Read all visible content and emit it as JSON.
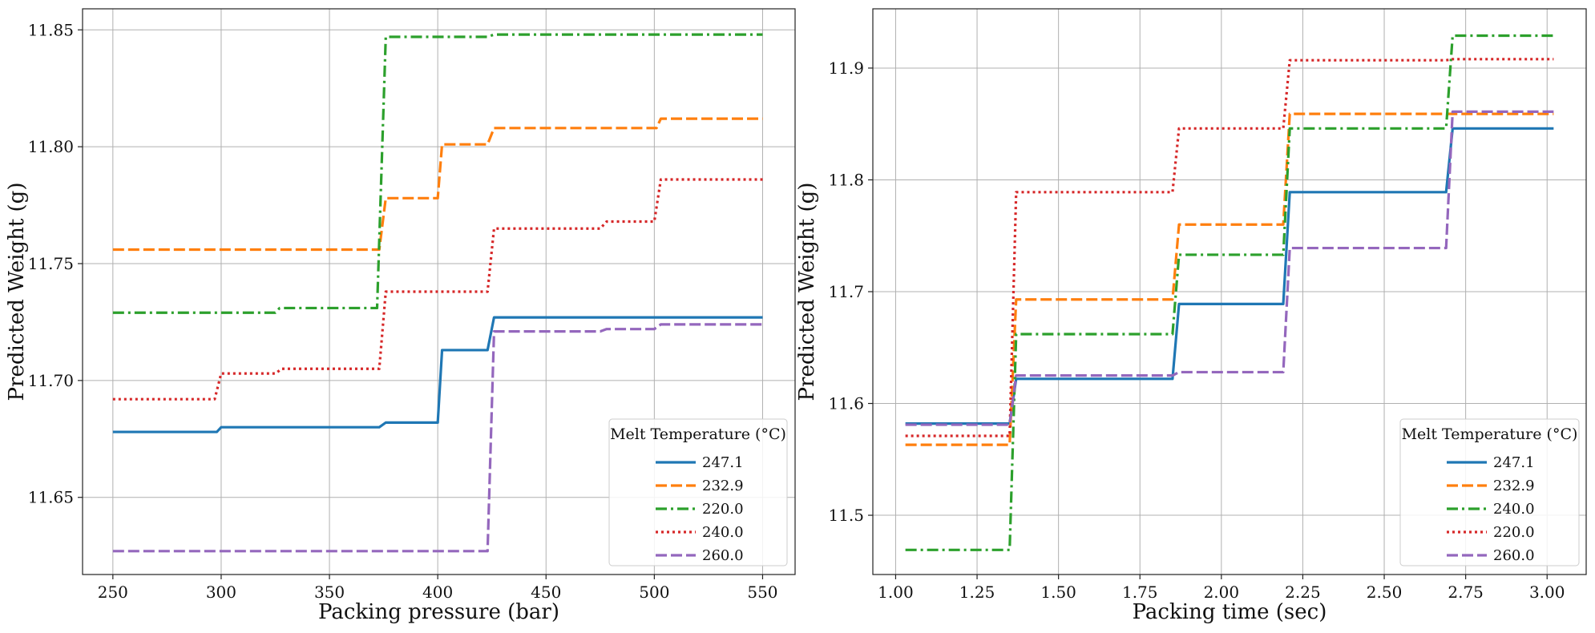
{
  "chart_data": [
    {
      "type": "line",
      "xlabel": "Packing pressure (bar)",
      "ylabel": "Predicted Weight (g)",
      "xlim": [
        236,
        565
      ],
      "ylim": [
        11.617,
        11.859
      ],
      "xticks": [
        250,
        300,
        350,
        400,
        450,
        500,
        550
      ],
      "yticks": [
        11.65,
        11.7,
        11.75,
        11.8,
        11.85
      ],
      "xtick_labels": [
        "250",
        "300",
        "350",
        "400",
        "450",
        "500",
        "550"
      ],
      "ytick_labels": [
        "11.65",
        "11.70",
        "11.75",
        "11.80",
        "11.85"
      ],
      "legend": {
        "title": "Melt Temperature (°C)",
        "location": "lower right"
      },
      "series": [
        {
          "name": "247.1",
          "color": "#1f77b4",
          "style": "solid",
          "x": [
            250,
            298,
            300,
            373,
            376,
            400,
            402,
            423,
            426,
            550
          ],
          "y": [
            11.678,
            11.678,
            11.68,
            11.68,
            11.682,
            11.682,
            11.713,
            11.713,
            11.727,
            11.727
          ]
        },
        {
          "name": "232.9",
          "color": "#ff7f0e",
          "style": "dashed",
          "x": [
            250,
            373,
            376,
            400,
            402,
            423,
            426,
            501,
            503,
            550
          ],
          "y": [
            11.756,
            11.756,
            11.778,
            11.778,
            11.801,
            11.801,
            11.808,
            11.808,
            11.812,
            11.812
          ]
        },
        {
          "name": "220.0",
          "color": "#2ca02c",
          "style": "dashdot",
          "x": [
            250,
            325,
            327,
            372,
            376,
            423,
            426,
            550
          ],
          "y": [
            11.729,
            11.729,
            11.731,
            11.731,
            11.847,
            11.847,
            11.848,
            11.848
          ]
        },
        {
          "name": "240.0",
          "color": "#d62728",
          "style": "dotted",
          "x": [
            250,
            297,
            300,
            325,
            328,
            373,
            376,
            423,
            426,
            475,
            478,
            500,
            503,
            550
          ],
          "y": [
            11.692,
            11.692,
            11.703,
            11.703,
            11.705,
            11.705,
            11.738,
            11.738,
            11.765,
            11.765,
            11.768,
            11.768,
            11.786,
            11.786
          ]
        },
        {
          "name": "260.0",
          "color": "#9467bd",
          "style": "dashed",
          "x": [
            250,
            373,
            376,
            423,
            426,
            475,
            478,
            500,
            503,
            550
          ],
          "y": [
            11.627,
            11.627,
            11.627,
            11.627,
            11.721,
            11.721,
            11.722,
            11.722,
            11.724,
            11.724
          ]
        }
      ]
    },
    {
      "type": "line",
      "xlabel": "Packing time (sec)",
      "ylabel": "Predicted Weight (g)",
      "xlim": [
        0.93,
        3.12
      ],
      "ylim": [
        11.447,
        11.953
      ],
      "xticks": [
        1.0,
        1.25,
        1.5,
        1.75,
        2.0,
        2.25,
        2.5,
        2.75,
        3.0
      ],
      "yticks": [
        11.5,
        11.6,
        11.7,
        11.8,
        11.9
      ],
      "xtick_labels": [
        "1.00",
        "1.25",
        "1.50",
        "1.75",
        "2.00",
        "2.25",
        "2.50",
        "2.75",
        "3.00"
      ],
      "ytick_labels": [
        "11.5",
        "11.6",
        "11.7",
        "11.8",
        "11.9"
      ],
      "legend": {
        "title": "Melt Temperature (°C)",
        "location": "lower right"
      },
      "series": [
        {
          "name": "247.1",
          "color": "#1f77b4",
          "style": "solid",
          "x": [
            1.03,
            1.35,
            1.37,
            1.85,
            1.87,
            2.19,
            2.21,
            2.69,
            2.71,
            3.02
          ],
          "y": [
            11.582,
            11.582,
            11.622,
            11.622,
            11.689,
            11.689,
            11.789,
            11.789,
            11.846,
            11.846
          ]
        },
        {
          "name": "232.9",
          "color": "#ff7f0e",
          "style": "dashed",
          "x": [
            1.03,
            1.35,
            1.37,
            1.85,
            1.87,
            2.19,
            2.21,
            2.69,
            2.71,
            3.02
          ],
          "y": [
            11.563,
            11.563,
            11.693,
            11.693,
            11.76,
            11.76,
            11.859,
            11.859,
            11.859,
            11.859
          ]
        },
        {
          "name": "240.0",
          "color": "#2ca02c",
          "style": "dashdot",
          "x": [
            1.03,
            1.35,
            1.37,
            1.85,
            1.87,
            2.19,
            2.21,
            2.69,
            2.71,
            3.02
          ],
          "y": [
            11.469,
            11.469,
            11.662,
            11.662,
            11.733,
            11.733,
            11.846,
            11.846,
            11.929,
            11.929
          ]
        },
        {
          "name": "220.0",
          "color": "#d62728",
          "style": "dotted",
          "x": [
            1.03,
            1.35,
            1.37,
            1.85,
            1.87,
            2.19,
            2.21,
            2.69,
            2.71,
            3.02
          ],
          "y": [
            11.571,
            11.571,
            11.789,
            11.789,
            11.846,
            11.846,
            11.907,
            11.907,
            11.908,
            11.908
          ]
        },
        {
          "name": "260.0",
          "color": "#9467bd",
          "style": "dashed",
          "x": [
            1.03,
            1.35,
            1.37,
            1.85,
            1.87,
            2.19,
            2.21,
            2.69,
            2.71,
            3.02
          ],
          "y": [
            11.581,
            11.581,
            11.625,
            11.625,
            11.628,
            11.628,
            11.739,
            11.739,
            11.861,
            11.861
          ]
        }
      ]
    }
  ]
}
